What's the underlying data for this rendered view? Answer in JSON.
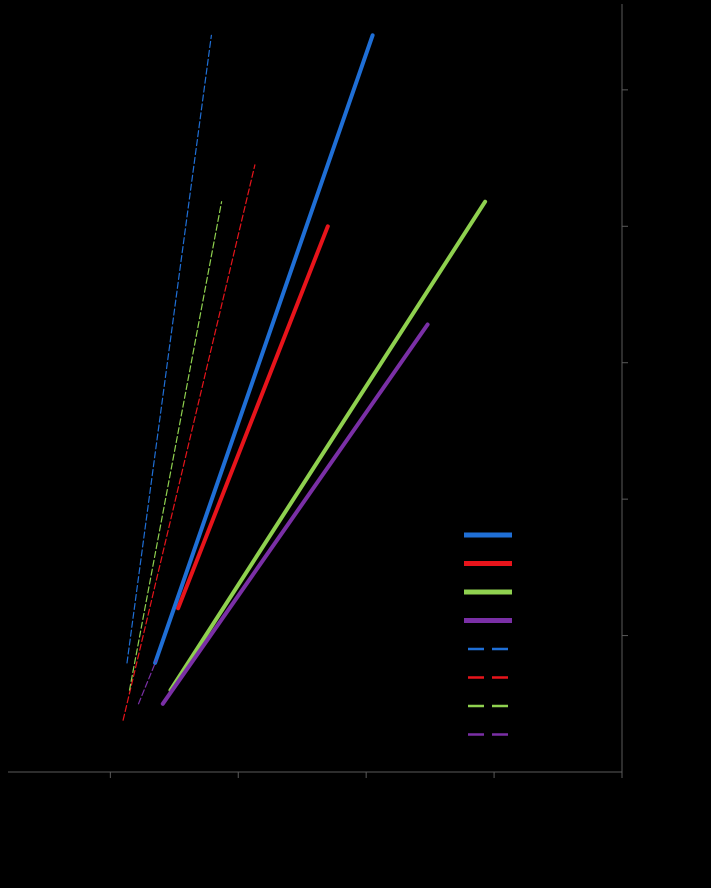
{
  "chart_data": {
    "type": "line",
    "title": "",
    "xlabel": "",
    "ylabel": "",
    "xlim": [
      0,
      4.8
    ],
    "ylim": [
      0,
      5.6
    ],
    "x_ticks": [
      0.8,
      1.8,
      2.8,
      3.8,
      4.8
    ],
    "y_ticks": [
      1,
      2,
      3,
      4,
      5
    ],
    "tick_labels_visible": false,
    "grid": false,
    "legend_position": "bottom-right",
    "series": [
      {
        "color": "#1f6fd6",
        "style": "solid",
        "x": [
          1.15,
          2.85
        ],
        "y": [
          0.8,
          5.4
        ]
      },
      {
        "color": "#e8141b",
        "style": "solid",
        "x": [
          1.33,
          2.5
        ],
        "y": [
          1.2,
          4.0
        ]
      },
      {
        "color": "#8fd14f",
        "style": "solid",
        "x": [
          1.27,
          3.73
        ],
        "y": [
          0.6,
          4.18
        ]
      },
      {
        "color": "#7a2fa6",
        "style": "solid",
        "x": [
          1.21,
          3.28
        ],
        "y": [
          0.5,
          3.28
        ]
      },
      {
        "color": "#1f6fd6",
        "style": "dashed",
        "x": [
          0.93,
          1.59
        ],
        "y": [
          0.8,
          5.4
        ]
      },
      {
        "color": "#e8141b",
        "style": "dashed",
        "x": [
          0.9,
          1.93
        ],
        "y": [
          0.38,
          4.45
        ]
      },
      {
        "color": "#8fd14f",
        "style": "dashed",
        "x": [
          0.95,
          1.67
        ],
        "y": [
          0.6,
          4.18
        ]
      },
      {
        "color": "#7a2fa6",
        "style": "dashed",
        "x": [
          1.02,
          1.16
        ],
        "y": [
          0.5,
          0.82
        ]
      }
    ]
  }
}
